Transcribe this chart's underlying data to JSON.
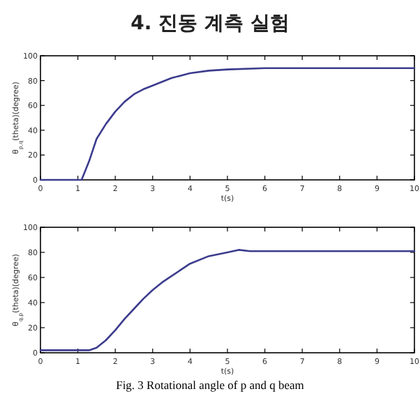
{
  "chart_data": [
    {
      "type": "line",
      "title": "4. 진동 계측 실험",
      "xlabel": "t(s)",
      "ylabel": "θ$_{p,q}$(theta)(degree)",
      "xlim": [
        0,
        10
      ],
      "ylim": [
        0,
        100
      ],
      "xticks": [
        0,
        1,
        2,
        3,
        4,
        5,
        6,
        7,
        8,
        9,
        10
      ],
      "yticks": [
        0,
        20,
        40,
        60,
        80,
        100
      ],
      "series": [
        {
          "color": "#3c3c8e",
          "x": [
            0,
            1.1,
            1.3,
            1.5,
            1.75,
            2,
            2.25,
            2.5,
            2.75,
            3,
            3.5,
            4,
            4.5,
            5,
            6,
            7,
            8,
            9,
            10
          ],
          "values": [
            0,
            0,
            15,
            33,
            45,
            55,
            63,
            69,
            73,
            76,
            82,
            86,
            88,
            89,
            90,
            90,
            90,
            90,
            90
          ]
        }
      ]
    },
    {
      "type": "line",
      "xlabel": "t(s)",
      "ylabel": "θ$_{q,p}$(theta)(degree)",
      "xlim": [
        0,
        10
      ],
      "ylim": [
        0,
        100
      ],
      "xticks": [
        0,
        1,
        2,
        3,
        4,
        5,
        6,
        7,
        8,
        9,
        10
      ],
      "yticks": [
        0,
        20,
        40,
        60,
        80,
        100
      ],
      "annotations": [
        "Fig. 3 Rotational angle of p and q beam"
      ],
      "series": [
        {
          "color": "#3c3c8e",
          "x": [
            0,
            1,
            1.3,
            1.5,
            1.75,
            2,
            2.25,
            2.5,
            2.75,
            3,
            3.25,
            3.5,
            3.75,
            4,
            4.5,
            5,
            5.3,
            5.6,
            6,
            7,
            8,
            9,
            10
          ],
          "values": [
            2,
            2,
            2,
            4,
            10,
            18,
            27,
            35,
            43,
            50,
            56,
            61,
            66,
            71,
            77,
            80,
            82,
            81,
            81,
            81,
            81,
            81,
            81
          ]
        }
      ]
    }
  ]
}
